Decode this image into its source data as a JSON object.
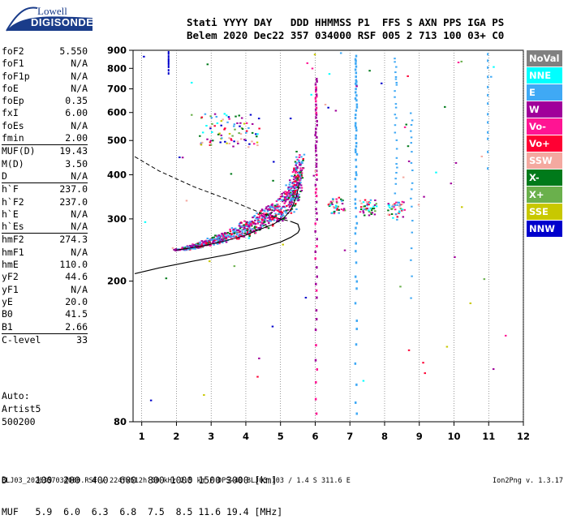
{
  "logo": {
    "top": "Lowell",
    "bottom": "DIGISONDE"
  },
  "header": {
    "labels": "Stati YYYY DAY   DDD HHMMSS P1  FFS S AXN PPS IGA PS",
    "values": "Belem 2020 Dec22 357 034000 RSF 005 2 713 100 03+ C0"
  },
  "params_group1": [
    {
      "name": "foF2",
      "value": "5.550"
    },
    {
      "name": "foF1",
      "value": "N/A"
    },
    {
      "name": "foF1p",
      "value": "N/A"
    },
    {
      "name": "foE",
      "value": "N/A"
    },
    {
      "name": "foEp",
      "value": "0.35"
    },
    {
      "name": "fxI",
      "value": "6.00"
    },
    {
      "name": "foEs",
      "value": "N/A"
    },
    {
      "name": "fmin",
      "value": "2.00"
    }
  ],
  "params_group2": [
    {
      "name": "MUF(D)",
      "value": "19.43"
    },
    {
      "name": "M(D)",
      "value": "3.50"
    },
    {
      "name": "D",
      "value": "N/A"
    }
  ],
  "params_group3": [
    {
      "name": "h`F",
      "value": "237.0"
    },
    {
      "name": "h`F2",
      "value": "237.0"
    },
    {
      "name": "h`E",
      "value": "N/A"
    },
    {
      "name": "h`Es",
      "value": "N/A"
    }
  ],
  "params_group4": [
    {
      "name": "hmF2",
      "value": "274.3"
    },
    {
      "name": "hmF1",
      "value": "N/A"
    },
    {
      "name": "hmE",
      "value": "110.0"
    },
    {
      "name": "yF2",
      "value": "44.6"
    },
    {
      "name": "yF1",
      "value": "N/A"
    },
    {
      "name": "yE",
      "value": "20.0"
    },
    {
      "name": "B0",
      "value": "41.5"
    },
    {
      "name": "B1",
      "value": "2.66"
    }
  ],
  "params_group5": [
    {
      "name": "C-level",
      "value": "33"
    }
  ],
  "auto": {
    "line1": "Auto:",
    "line2": "Artist5",
    "line3": "500200"
  },
  "dmuf": {
    "d_line": "D     100  200  400  600  800 1000 1500 3000 [km]",
    "muf_line": "MUF   5.9  6.0  6.3  6.8  7.5  8.5 11.6 19.4 [MHz]"
  },
  "footer": {
    "left": "BLJ03_2020357034000.RSF / 224fx512h 50 kHz 2.5 km / DPS-4D BLJ03 103 / 1.4 S 311.6 E",
    "right": "Ion2Png v. 1.3.17"
  },
  "legend": [
    {
      "label": "NoVal",
      "color": "#808080"
    },
    {
      "label": "NNE",
      "color": "#00ffff"
    },
    {
      "label": "E",
      "color": "#3fa9f5"
    },
    {
      "label": "W",
      "color": "#a0009a"
    },
    {
      "label": "Vo-",
      "color": "#ff1493"
    },
    {
      "label": "Vo+",
      "color": "#ff0033"
    },
    {
      "label": "SSW",
      "color": "#f4a9a0"
    },
    {
      "label": "X-",
      "color": "#007a1a"
    },
    {
      "label": "X+",
      "color": "#6ab04c"
    },
    {
      "label": "SSE",
      "color": "#c8c800"
    },
    {
      "label": "NNW",
      "color": "#0000cc"
    }
  ],
  "chart_data": {
    "type": "scatter",
    "title": "",
    "xlabel": "",
    "ylabel": "",
    "xlim": [
      0.75,
      12.0
    ],
    "ylim": [
      80,
      900
    ],
    "y_scale": "log",
    "x_ticks": [
      1,
      2,
      3,
      4,
      5,
      6,
      7,
      8,
      9,
      10,
      11,
      12
    ],
    "y_ticks": [
      80,
      200,
      300,
      400,
      500,
      600,
      700,
      800,
      900
    ],
    "grid": "vertical-dotted",
    "trace_f2": {
      "name": "",
      "x": [
        2.0,
        2.4,
        2.8,
        3.2,
        3.6,
        4.0,
        4.4,
        4.8,
        5.1,
        5.3,
        5.45,
        5.55
      ],
      "y": [
        245,
        248,
        252,
        257,
        263,
        270,
        280,
        290,
        302,
        318,
        345,
        380
      ]
    },
    "profile_solid": {
      "x": [
        0.8,
        1.5,
        2.5,
        3.5,
        4.5,
        5.0,
        5.3,
        5.5,
        5.55,
        5.5,
        5.3
      ],
      "y": [
        210,
        218,
        228,
        238,
        250,
        258,
        266,
        274,
        280,
        290,
        295
      ]
    },
    "profile_dashed": {
      "x": [
        0.8,
        1.5,
        2.5,
        3.5,
        4.5,
        5.0,
        5.3
      ],
      "y": [
        450,
        410,
        370,
        340,
        310,
        300,
        295
      ]
    }
  }
}
